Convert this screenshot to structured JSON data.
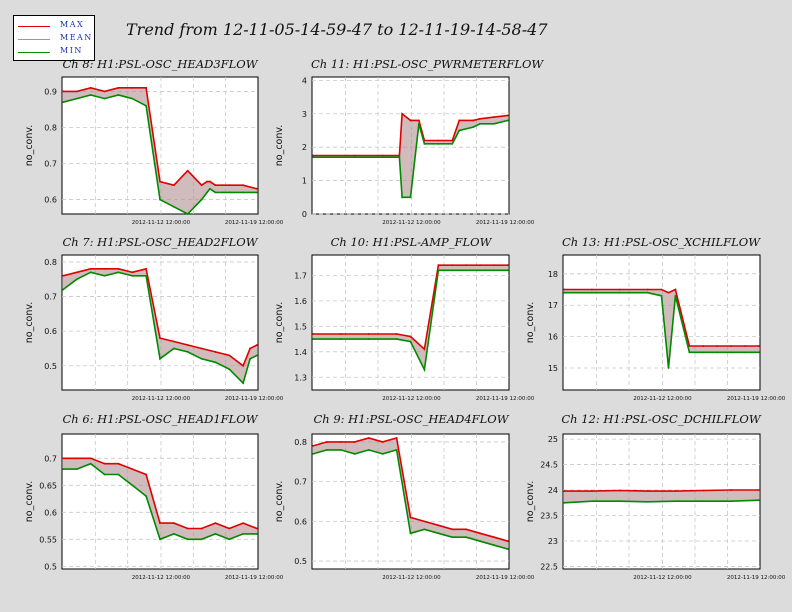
{
  "main_title": "Trend from 12-11-05-14-59-47 to 12-11-19-14-58-47",
  "legend": [
    {
      "label": "MAX",
      "color": "#e00000"
    },
    {
      "label": "MEAN",
      "color": "#d08080"
    },
    {
      "label": "MIN",
      "color": "#009000"
    }
  ],
  "colors": {
    "max": "#e00000",
    "min": "#008a00",
    "mean": "#b09090",
    "grid": "#c8c8c8",
    "plot_bg": "#ffffff"
  },
  "chart_data": [
    {
      "type": "line",
      "title": "Ch 8: H1:PSL-OSC_HEAD3FLOW",
      "ylabel": "no_conv.",
      "ylim": [
        0.56,
        0.94
      ],
      "yticks": [
        "0.6",
        "0.7",
        "0.8",
        "0.9"
      ],
      "xticks": [
        "2012-11-12 12:00:00",
        "2012-11-19 12:00:00"
      ],
      "x": [
        0,
        1,
        2,
        3,
        4,
        5,
        6,
        7,
        8,
        9,
        10,
        10.4,
        10.6,
        11,
        11.5,
        12,
        13,
        14
      ],
      "series": [
        {
          "name": "MAX",
          "values": [
            0.9,
            0.9,
            0.91,
            0.9,
            0.91,
            0.91,
            0.91,
            0.65,
            0.64,
            0.68,
            0.64,
            0.65,
            0.65,
            0.64,
            0.64,
            0.64,
            0.64,
            0.63
          ]
        },
        {
          "name": "MIN",
          "values": [
            0.87,
            0.88,
            0.89,
            0.88,
            0.89,
            0.88,
            0.86,
            0.6,
            0.58,
            0.56,
            0.6,
            0.62,
            0.63,
            0.62,
            0.62,
            0.62,
            0.62,
            0.62
          ]
        }
      ]
    },
    {
      "type": "line",
      "title": "Ch 11: H1:PSL-OSC_PWRMETERFLOW",
      "ylabel": "no_conv.",
      "ylim": [
        0,
        4.1
      ],
      "yticks": [
        "0",
        "1",
        "2",
        "3",
        "4"
      ],
      "xticks": [
        "2012-11-12 12:00:00",
        "2012-11-19 12:00:00"
      ],
      "x": [
        0,
        3,
        5,
        6.2,
        6.4,
        7,
        7.6,
        8,
        9,
        10,
        10.5,
        11.5,
        12,
        13,
        14
      ],
      "series": [
        {
          "name": "MAX",
          "values": [
            1.75,
            1.75,
            1.75,
            1.75,
            3.0,
            2.8,
            2.8,
            2.2,
            2.2,
            2.2,
            2.8,
            2.8,
            2.85,
            2.9,
            2.95
          ]
        },
        {
          "name": "MIN",
          "values": [
            1.7,
            1.7,
            1.7,
            1.7,
            0.5,
            0.5,
            2.7,
            2.1,
            2.1,
            2.1,
            2.5,
            2.6,
            2.7,
            2.7,
            2.8
          ]
        }
      ]
    },
    {
      "type": "line",
      "title": "Ch 7: H1:PSL-OSC_HEAD2FLOW",
      "ylabel": "no_conv.",
      "ylim": [
        0.43,
        0.82
      ],
      "yticks": [
        "0.5",
        "0.6",
        "0.7",
        "0.8"
      ],
      "xticks": [
        "2012-11-12 12:00:00",
        "2012-11-19 12:00:00"
      ],
      "x": [
        0,
        1,
        2,
        3,
        4,
        5,
        6,
        7,
        8,
        9,
        10,
        11,
        12,
        13,
        13.5,
        14
      ],
      "series": [
        {
          "name": "MAX",
          "values": [
            0.76,
            0.77,
            0.78,
            0.78,
            0.78,
            0.77,
            0.78,
            0.58,
            0.57,
            0.56,
            0.55,
            0.54,
            0.53,
            0.5,
            0.55,
            0.56
          ]
        },
        {
          "name": "MIN",
          "values": [
            0.72,
            0.75,
            0.77,
            0.76,
            0.77,
            0.76,
            0.76,
            0.52,
            0.55,
            0.54,
            0.52,
            0.51,
            0.49,
            0.45,
            0.52,
            0.53
          ]
        }
      ]
    },
    {
      "type": "line",
      "title": "Ch 10: H1:PSL-AMP_FLOW",
      "ylabel": "no_conv.",
      "ylim": [
        1.25,
        1.78
      ],
      "yticks": [
        "1.3",
        "1.4",
        "1.5",
        "1.6",
        "1.7"
      ],
      "xticks": [
        "2012-11-12 12:00:00",
        "2012-11-19 12:00:00"
      ],
      "x": [
        0,
        2,
        4,
        6,
        7,
        8,
        9,
        10,
        11,
        12,
        13,
        14
      ],
      "series": [
        {
          "name": "MAX",
          "values": [
            1.47,
            1.47,
            1.47,
            1.47,
            1.46,
            1.41,
            1.74,
            1.74,
            1.74,
            1.74,
            1.74,
            1.74
          ]
        },
        {
          "name": "MIN",
          "values": [
            1.45,
            1.45,
            1.45,
            1.45,
            1.44,
            1.33,
            1.72,
            1.72,
            1.72,
            1.72,
            1.72,
            1.72
          ]
        }
      ]
    },
    {
      "type": "line",
      "title": "Ch 13: H1:PSL-OSC_XCHILFLOW",
      "ylabel": "no_conv.",
      "ylim": [
        14.3,
        18.6
      ],
      "yticks": [
        "15",
        "16",
        "17",
        "18"
      ],
      "xticks": [
        "2012-11-12 12:00:00",
        "2012-11-19 12:00:00"
      ],
      "x": [
        0,
        2,
        4,
        6,
        7,
        7.5,
        8,
        9,
        10,
        11,
        12,
        13,
        14
      ],
      "series": [
        {
          "name": "MAX",
          "values": [
            17.5,
            17.5,
            17.5,
            17.5,
            17.5,
            17.4,
            17.5,
            15.7,
            15.7,
            15.7,
            15.7,
            15.7,
            15.7
          ]
        },
        {
          "name": "MIN",
          "values": [
            17.4,
            17.4,
            17.4,
            17.4,
            17.3,
            15.0,
            17.3,
            15.5,
            15.5,
            15.5,
            15.5,
            15.5,
            15.5
          ]
        }
      ]
    },
    {
      "type": "line",
      "title": "Ch 6: H1:PSL-OSC_HEAD1FLOW",
      "ylabel": "no_conv.",
      "ylim": [
        0.495,
        0.745
      ],
      "yticks": [
        "0.5",
        "0.55",
        "0.6",
        "0.65",
        "0.7"
      ],
      "xticks": [
        "2012-11-12 12:00:00",
        "2012-11-19 12:00:00"
      ],
      "x": [
        0,
        1,
        2,
        3,
        4,
        5,
        6,
        7,
        8,
        9,
        10,
        11,
        12,
        13,
        14
      ],
      "series": [
        {
          "name": "MAX",
          "values": [
            0.7,
            0.7,
            0.7,
            0.69,
            0.69,
            0.68,
            0.67,
            0.58,
            0.58,
            0.57,
            0.57,
            0.58,
            0.57,
            0.58,
            0.57
          ]
        },
        {
          "name": "MIN",
          "values": [
            0.68,
            0.68,
            0.69,
            0.67,
            0.67,
            0.65,
            0.63,
            0.55,
            0.56,
            0.55,
            0.55,
            0.56,
            0.55,
            0.56,
            0.56
          ]
        }
      ]
    },
    {
      "type": "line",
      "title": "Ch 9: H1:PSL-OSC_HEAD4FLOW",
      "ylabel": "no_conv.",
      "ylim": [
        0.48,
        0.82
      ],
      "yticks": [
        "0.5",
        "0.6",
        "0.7",
        "0.8"
      ],
      "xticks": [
        "2012-11-12 12:00:00",
        "2012-11-19 12:00:00"
      ],
      "x": [
        0,
        1,
        2,
        3,
        4,
        5,
        6,
        7,
        8,
        9,
        10,
        11,
        12,
        13,
        14
      ],
      "series": [
        {
          "name": "MAX",
          "values": [
            0.79,
            0.8,
            0.8,
            0.8,
            0.81,
            0.8,
            0.81,
            0.61,
            0.6,
            0.59,
            0.58,
            0.58,
            0.57,
            0.56,
            0.55
          ]
        },
        {
          "name": "MIN",
          "values": [
            0.77,
            0.78,
            0.78,
            0.77,
            0.78,
            0.77,
            0.78,
            0.57,
            0.58,
            0.57,
            0.56,
            0.56,
            0.55,
            0.54,
            0.53
          ]
        }
      ]
    },
    {
      "type": "line",
      "title": "Ch 12: H1:PSL-OSC_DCHILFLOW",
      "ylabel": "no_conv.",
      "ylim": [
        22.45,
        25.1
      ],
      "yticks": [
        "22.5",
        "23",
        "23.5",
        "24",
        "24.5",
        "25"
      ],
      "xticks": [
        "2012-11-12 12:00:00",
        "2012-11-19 12:00:00"
      ],
      "x": [
        0,
        2,
        4,
        6,
        8,
        10,
        12,
        14
      ],
      "series": [
        {
          "name": "MAX",
          "values": [
            23.98,
            23.98,
            23.99,
            23.98,
            23.98,
            23.99,
            24.0,
            24.0
          ]
        },
        {
          "name": "MIN",
          "values": [
            23.75,
            23.78,
            23.78,
            23.77,
            23.78,
            23.78,
            23.78,
            23.8
          ]
        }
      ]
    }
  ]
}
